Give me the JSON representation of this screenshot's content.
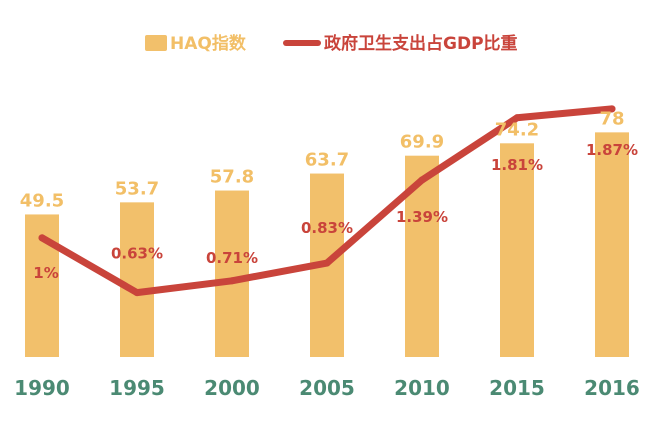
{
  "colors": {
    "bar": "#f2c06b",
    "line": "#c9443b",
    "axis_text": "#4b8a73",
    "bar_value_text": "#f2bf67",
    "line_value_text": "#c9443b",
    "legend_bar_text": "#f2bf67",
    "legend_line_text": "#c9443b"
  },
  "chart_data": {
    "type": "bar",
    "title": "",
    "xlabel": "",
    "ylabel": "",
    "categories": [
      "1990",
      "1995",
      "2000",
      "2005",
      "2010",
      "2015",
      "2016"
    ],
    "series": [
      {
        "name": "HAQ指数",
        "type": "bar",
        "values": [
          49.5,
          53.7,
          57.8,
          63.7,
          69.9,
          74.2,
          78
        ],
        "labels": [
          "49.5",
          "53.7",
          "57.8",
          "63.7",
          "69.9",
          "74.2",
          "78"
        ]
      },
      {
        "name": "政府卫生支出占GDP比重",
        "type": "line",
        "values": [
          1.0,
          0.63,
          0.71,
          0.83,
          1.39,
          1.81,
          1.87
        ],
        "labels": [
          "1%",
          "0.63%",
          "0.71%",
          "0.83%",
          "1.39%",
          "1.81%",
          "1.87%"
        ]
      }
    ],
    "legend_position": "top-center",
    "grid": false,
    "ylim_bar": [
      0,
      100
    ],
    "ylim_line": [
      0,
      2.2
    ]
  }
}
